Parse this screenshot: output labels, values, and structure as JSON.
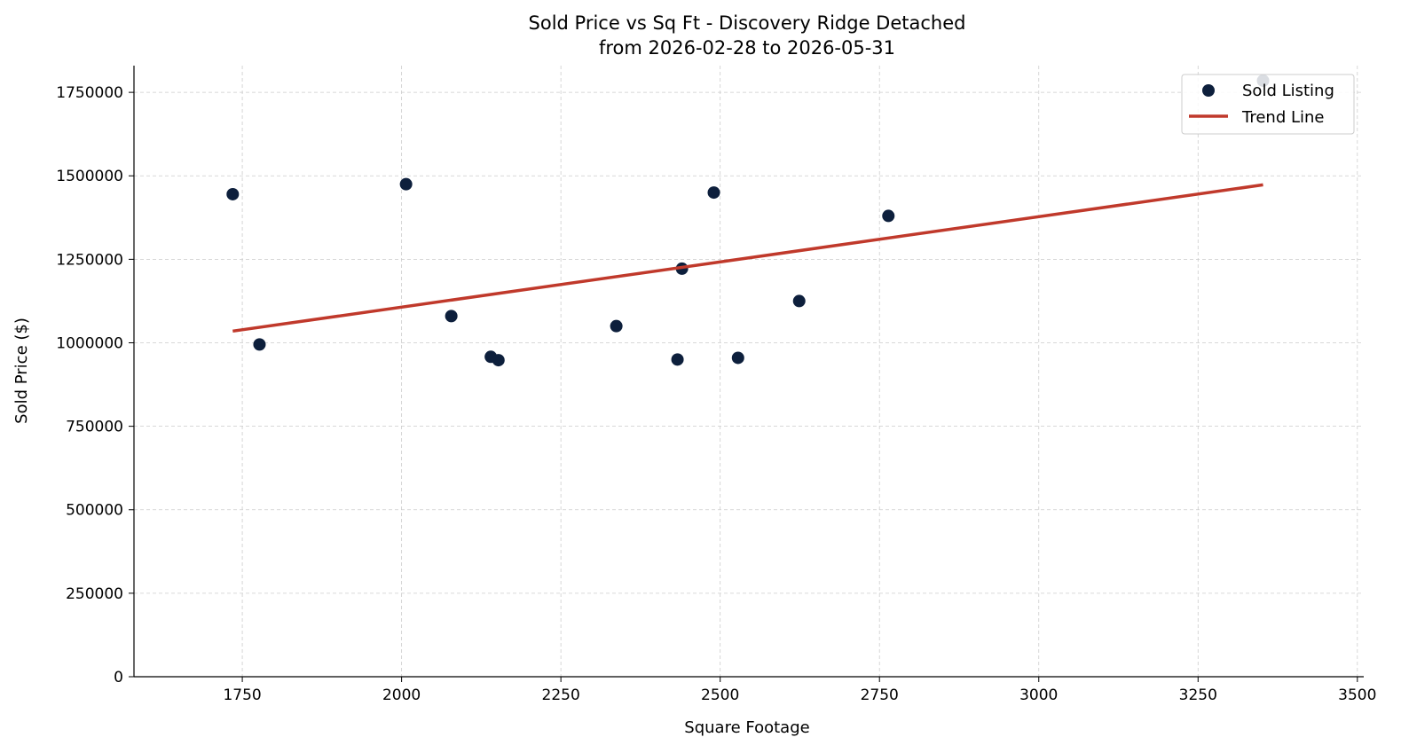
{
  "chart_data": {
    "type": "scatter",
    "title": "Sold Price vs Sq Ft - Discovery Ridge Detached",
    "subtitle": "from 2026-02-28 to 2026-05-31",
    "xlabel": "Square Footage",
    "ylabel": "Sold Price ($)",
    "xlim": [
      1580,
      3510
    ],
    "ylim": [
      0,
      1830000
    ],
    "xticks": [
      1750,
      2000,
      2250,
      2500,
      2750,
      3000,
      3250,
      3500
    ],
    "yticks": [
      0,
      250000,
      500000,
      750000,
      1000000,
      1250000,
      1500000,
      1750000
    ],
    "grid": true,
    "legend_position": "top-right",
    "series": [
      {
        "name": "Sold Listing",
        "kind": "scatter",
        "color": "#0d1f3c",
        "points": [
          {
            "x": 1735,
            "y": 1445000
          },
          {
            "x": 1777,
            "y": 995000
          },
          {
            "x": 2007,
            "y": 1475000
          },
          {
            "x": 2078,
            "y": 1080000
          },
          {
            "x": 2140,
            "y": 958000
          },
          {
            "x": 2152,
            "y": 948000
          },
          {
            "x": 2337,
            "y": 1050000
          },
          {
            "x": 2433,
            "y": 950000
          },
          {
            "x": 2440,
            "y": 1222000
          },
          {
            "x": 2490,
            "y": 1450000
          },
          {
            "x": 2528,
            "y": 955000
          },
          {
            "x": 2624,
            "y": 1125000
          },
          {
            "x": 2764,
            "y": 1380000
          },
          {
            "x": 3352,
            "y": 1785000
          }
        ]
      },
      {
        "name": "Trend Line",
        "kind": "line",
        "color": "#c0392b",
        "points": [
          {
            "x": 1735,
            "y": 1035000
          },
          {
            "x": 3352,
            "y": 1473000
          }
        ]
      }
    ]
  }
}
